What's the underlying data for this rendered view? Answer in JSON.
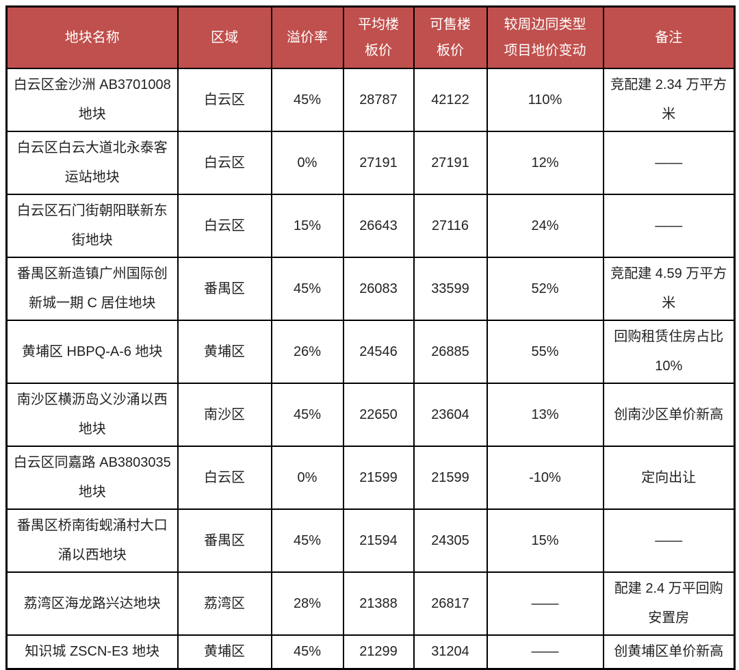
{
  "style": {
    "header_bg": "#c0504d",
    "header_text": "#ffffff",
    "body_text": "#222222",
    "border": "#000000"
  },
  "chart_data": {
    "type": "table",
    "title": "",
    "columns": [
      "地块名称",
      "区域",
      "溢价率",
      "平均楼板价",
      "可售楼板价",
      "较周边同类型项目地价变动",
      "备注"
    ],
    "columns_display": [
      "地块名称",
      "区域",
      "溢价率",
      "平均楼\n板价",
      "可售楼\n板价",
      "较周边同类型\n项目地价变动",
      "备注"
    ],
    "rows": [
      {
        "name": "白云区金沙洲 AB3701008 地块",
        "district": "白云区",
        "premium_rate": "45%",
        "avg_floor_price": "28787",
        "sellable_floor_price": "42122",
        "change_vs_nearby": "110%",
        "note": "竞配建 2.34 万平方米"
      },
      {
        "name": "白云区白云大道北永泰客运站地块",
        "district": "白云区",
        "premium_rate": "0%",
        "avg_floor_price": "27191",
        "sellable_floor_price": "27191",
        "change_vs_nearby": "12%",
        "note": "——"
      },
      {
        "name": "白云区石门街朝阳联新东街地块",
        "district": "白云区",
        "premium_rate": "15%",
        "avg_floor_price": "26643",
        "sellable_floor_price": "27116",
        "change_vs_nearby": "24%",
        "note": "——"
      },
      {
        "name": "番禺区新造镇广州国际创新城一期 C 居住地块",
        "district": "番禺区",
        "premium_rate": "45%",
        "avg_floor_price": "26083",
        "sellable_floor_price": "33599",
        "change_vs_nearby": "52%",
        "note": "竞配建 4.59 万平方米"
      },
      {
        "name": "黄埔区 HBPQ-A-6 地块",
        "district": "黄埔区",
        "premium_rate": "26%",
        "avg_floor_price": "24546",
        "sellable_floor_price": "26885",
        "change_vs_nearby": "55%",
        "note": "回购租赁住房占比 10%"
      },
      {
        "name": "南沙区横沥岛义沙涌以西地块",
        "district": "南沙区",
        "premium_rate": "45%",
        "avg_floor_price": "22650",
        "sellable_floor_price": "23604",
        "change_vs_nearby": "13%",
        "note": "创南沙区单价新高"
      },
      {
        "name": "白云区同嘉路 AB3803035 地块",
        "district": "白云区",
        "premium_rate": "0%",
        "avg_floor_price": "21599",
        "sellable_floor_price": "21599",
        "change_vs_nearby": "-10%",
        "note": "定向出让"
      },
      {
        "name": "番禺区桥南街蚬涌村大口涌以西地块",
        "district": "番禺区",
        "premium_rate": "45%",
        "avg_floor_price": "21594",
        "sellable_floor_price": "24305",
        "change_vs_nearby": "15%",
        "note": "——"
      },
      {
        "name": "荔湾区海龙路兴达地块",
        "district": "荔湾区",
        "premium_rate": "28%",
        "avg_floor_price": "21388",
        "sellable_floor_price": "26817",
        "change_vs_nearby": "——",
        "note": "配建 2.4 万平回购安置房"
      },
      {
        "name": "知识城 ZSCN-E3 地块",
        "district": "黄埔区",
        "premium_rate": "45%",
        "avg_floor_price": "21299",
        "sellable_floor_price": "31204",
        "change_vs_nearby": "——",
        "note": "创黄埔区单价新高"
      }
    ]
  }
}
